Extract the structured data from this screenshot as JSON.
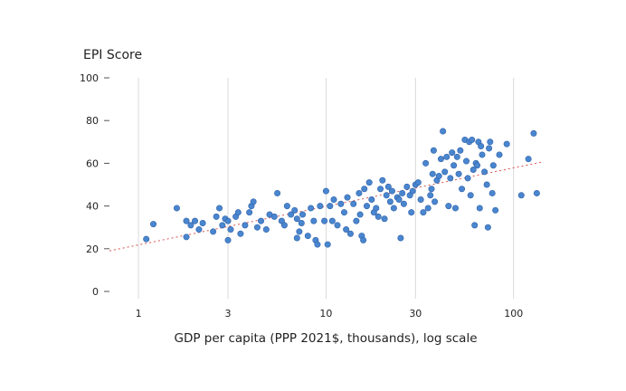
{
  "chart_data": {
    "type": "scatter",
    "ylabel": "EPI Score",
    "xlabel": "GDP per capita (PPP 2021$, thousands), log scale",
    "x_scale": "log",
    "xlim": [
      0.7,
      140
    ],
    "ylim": [
      0,
      100
    ],
    "x_ticks": [
      1,
      3,
      10,
      30,
      100
    ],
    "x_tick_labels": [
      "1",
      "3",
      "10",
      "30",
      "100"
    ],
    "y_ticks": [
      0,
      20,
      40,
      60,
      80,
      100
    ],
    "y_tick_labels": [
      "0",
      "20",
      "40",
      "60",
      "80",
      "100"
    ],
    "grid": "vertical",
    "trendline": {
      "style": "dotted",
      "x": [
        0.7,
        140
      ],
      "y": [
        19,
        60.5
      ]
    },
    "colors": {
      "points": "#4a86cf",
      "point_edge": "#2f62a8",
      "trendline": "#d9534f",
      "grid": "#d9d9d9"
    },
    "points": [
      {
        "x": 1.1,
        "y": 24.5
      },
      {
        "x": 1.2,
        "y": 31.5
      },
      {
        "x": 1.6,
        "y": 39
      },
      {
        "x": 1.8,
        "y": 25.5
      },
      {
        "x": 1.8,
        "y": 33
      },
      {
        "x": 1.9,
        "y": 31
      },
      {
        "x": 2.0,
        "y": 33
      },
      {
        "x": 2.2,
        "y": 32
      },
      {
        "x": 2.1,
        "y": 29
      },
      {
        "x": 2.5,
        "y": 28
      },
      {
        "x": 2.6,
        "y": 35
      },
      {
        "x": 2.7,
        "y": 39
      },
      {
        "x": 2.8,
        "y": 31
      },
      {
        "x": 2.9,
        "y": 34
      },
      {
        "x": 3.0,
        "y": 24
      },
      {
        "x": 3.0,
        "y": 33
      },
      {
        "x": 3.1,
        "y": 29
      },
      {
        "x": 3.3,
        "y": 35
      },
      {
        "x": 3.4,
        "y": 37
      },
      {
        "x": 3.5,
        "y": 27
      },
      {
        "x": 3.7,
        "y": 31
      },
      {
        "x": 3.9,
        "y": 37
      },
      {
        "x": 4.0,
        "y": 40
      },
      {
        "x": 4.1,
        "y": 42
      },
      {
        "x": 4.3,
        "y": 30
      },
      {
        "x": 4.5,
        "y": 33
      },
      {
        "x": 4.8,
        "y": 29
      },
      {
        "x": 5.0,
        "y": 36
      },
      {
        "x": 5.3,
        "y": 35
      },
      {
        "x": 5.5,
        "y": 46
      },
      {
        "x": 5.8,
        "y": 33
      },
      {
        "x": 6.0,
        "y": 31
      },
      {
        "x": 6.2,
        "y": 40
      },
      {
        "x": 6.5,
        "y": 36
      },
      {
        "x": 6.8,
        "y": 38
      },
      {
        "x": 7.0,
        "y": 25
      },
      {
        "x": 7.0,
        "y": 34
      },
      {
        "x": 7.2,
        "y": 28
      },
      {
        "x": 7.4,
        "y": 32
      },
      {
        "x": 7.5,
        "y": 36
      },
      {
        "x": 8.0,
        "y": 26
      },
      {
        "x": 8.3,
        "y": 39
      },
      {
        "x": 8.6,
        "y": 33
      },
      {
        "x": 8.8,
        "y": 24
      },
      {
        "x": 9.0,
        "y": 22
      },
      {
        "x": 9.3,
        "y": 40
      },
      {
        "x": 9.8,
        "y": 33
      },
      {
        "x": 10.0,
        "y": 47
      },
      {
        "x": 10.2,
        "y": 22
      },
      {
        "x": 10.5,
        "y": 40
      },
      {
        "x": 10.8,
        "y": 33
      },
      {
        "x": 11.0,
        "y": 43
      },
      {
        "x": 11.5,
        "y": 31
      },
      {
        "x": 12.0,
        "y": 41
      },
      {
        "x": 12.5,
        "y": 37
      },
      {
        "x": 12.8,
        "y": 29
      },
      {
        "x": 13.0,
        "y": 44
      },
      {
        "x": 13.5,
        "y": 27
      },
      {
        "x": 14.0,
        "y": 41
      },
      {
        "x": 14.5,
        "y": 33
      },
      {
        "x": 15.0,
        "y": 46
      },
      {
        "x": 15.2,
        "y": 36
      },
      {
        "x": 15.5,
        "y": 26
      },
      {
        "x": 15.8,
        "y": 24
      },
      {
        "x": 16.0,
        "y": 48
      },
      {
        "x": 16.5,
        "y": 40
      },
      {
        "x": 17.0,
        "y": 51
      },
      {
        "x": 17.5,
        "y": 43
      },
      {
        "x": 18.0,
        "y": 37
      },
      {
        "x": 18.5,
        "y": 39
      },
      {
        "x": 19.0,
        "y": 35
      },
      {
        "x": 19.5,
        "y": 48
      },
      {
        "x": 20.0,
        "y": 52
      },
      {
        "x": 20.5,
        "y": 34
      },
      {
        "x": 21.0,
        "y": 45
      },
      {
        "x": 21.5,
        "y": 49
      },
      {
        "x": 22.0,
        "y": 42
      },
      {
        "x": 22.5,
        "y": 47
      },
      {
        "x": 23.0,
        "y": 39
      },
      {
        "x": 24.0,
        "y": 44
      },
      {
        "x": 24.5,
        "y": 43
      },
      {
        "x": 25.0,
        "y": 25
      },
      {
        "x": 25.5,
        "y": 46
      },
      {
        "x": 26.0,
        "y": 41
      },
      {
        "x": 27.0,
        "y": 49
      },
      {
        "x": 28.0,
        "y": 45
      },
      {
        "x": 28.5,
        "y": 37
      },
      {
        "x": 29.0,
        "y": 47
      },
      {
        "x": 30.0,
        "y": 50
      },
      {
        "x": 31.0,
        "y": 51
      },
      {
        "x": 32.0,
        "y": 43
      },
      {
        "x": 33.0,
        "y": 37
      },
      {
        "x": 34.0,
        "y": 60
      },
      {
        "x": 35.0,
        "y": 39
      },
      {
        "x": 36.0,
        "y": 45
      },
      {
        "x": 36.5,
        "y": 48
      },
      {
        "x": 37.0,
        "y": 55
      },
      {
        "x": 37.5,
        "y": 66
      },
      {
        "x": 38.0,
        "y": 42
      },
      {
        "x": 39.0,
        "y": 52
      },
      {
        "x": 40.0,
        "y": 54
      },
      {
        "x": 41.0,
        "y": 62
      },
      {
        "x": 42.0,
        "y": 75
      },
      {
        "x": 43.0,
        "y": 56
      },
      {
        "x": 44.0,
        "y": 63
      },
      {
        "x": 45.0,
        "y": 40
      },
      {
        "x": 46.0,
        "y": 53
      },
      {
        "x": 47.0,
        "y": 65
      },
      {
        "x": 48.0,
        "y": 59
      },
      {
        "x": 49.0,
        "y": 39
      },
      {
        "x": 50.0,
        "y": 63
      },
      {
        "x": 51.0,
        "y": 55
      },
      {
        "x": 52.0,
        "y": 66
      },
      {
        "x": 53.0,
        "y": 48
      },
      {
        "x": 55.0,
        "y": 71
      },
      {
        "x": 56.0,
        "y": 61
      },
      {
        "x": 57.0,
        "y": 53
      },
      {
        "x": 58.0,
        "y": 70
      },
      {
        "x": 59.0,
        "y": 45
      },
      {
        "x": 60.0,
        "y": 71
      },
      {
        "x": 61.0,
        "y": 57
      },
      {
        "x": 62.0,
        "y": 31
      },
      {
        "x": 63.0,
        "y": 60
      },
      {
        "x": 64.0,
        "y": 59
      },
      {
        "x": 65.0,
        "y": 70
      },
      {
        "x": 66.0,
        "y": 39
      },
      {
        "x": 67.0,
        "y": 68
      },
      {
        "x": 68.0,
        "y": 64
      },
      {
        "x": 70.0,
        "y": 56
      },
      {
        "x": 72.0,
        "y": 50
      },
      {
        "x": 73.0,
        "y": 30
      },
      {
        "x": 74.0,
        "y": 67
      },
      {
        "x": 75.0,
        "y": 70
      },
      {
        "x": 77.0,
        "y": 46
      },
      {
        "x": 78.0,
        "y": 59
      },
      {
        "x": 80.0,
        "y": 38
      },
      {
        "x": 84.0,
        "y": 64
      },
      {
        "x": 92.0,
        "y": 69
      },
      {
        "x": 110.0,
        "y": 45
      },
      {
        "x": 120.0,
        "y": 62
      },
      {
        "x": 128.0,
        "y": 74
      },
      {
        "x": 133.0,
        "y": 46
      }
    ]
  }
}
